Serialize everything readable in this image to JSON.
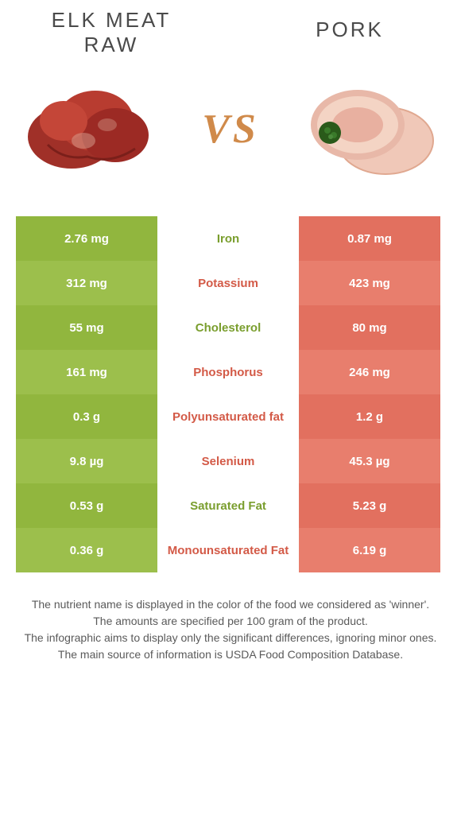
{
  "titles": {
    "left_line1": "ELK MEAT",
    "left_line2": "RAW",
    "right": "PORK",
    "vs": "VS"
  },
  "colors": {
    "left_bg": "#91b63e",
    "left_bg_alt": "#9cbf4c",
    "right_bg": "#e2705f",
    "right_bg_alt": "#e87e6d",
    "left_text": "#7a9e2e",
    "right_text": "#d35a47",
    "cell_text": "#ffffff"
  },
  "table": {
    "rows": [
      {
        "left": "2.76 mg",
        "label": "Iron",
        "right": "0.87 mg",
        "winner": "left"
      },
      {
        "left": "312 mg",
        "label": "Potassium",
        "right": "423 mg",
        "winner": "right"
      },
      {
        "left": "55 mg",
        "label": "Cholesterol",
        "right": "80 mg",
        "winner": "left"
      },
      {
        "left": "161 mg",
        "label": "Phosphorus",
        "right": "246 mg",
        "winner": "right"
      },
      {
        "left": "0.3 g",
        "label": "Polyunsaturated fat",
        "right": "1.2 g",
        "winner": "right"
      },
      {
        "left": "9.8 µg",
        "label": "Selenium",
        "right": "45.3 µg",
        "winner": "right"
      },
      {
        "left": "0.53 g",
        "label": "Saturated Fat",
        "right": "5.23 g",
        "winner": "left"
      },
      {
        "left": "0.36 g",
        "label": "Monounsaturated Fat",
        "right": "6.19 g",
        "winner": "right"
      }
    ]
  },
  "footer": {
    "line1": "The nutrient name is displayed in the color of the food we considered as 'winner'.",
    "line2": "The amounts are specified per 100 gram of the product.",
    "line3": "The infographic aims to display only the significant differences, ignoring minor ones.",
    "line4": "The main source of information is USDA Food Composition Database."
  }
}
